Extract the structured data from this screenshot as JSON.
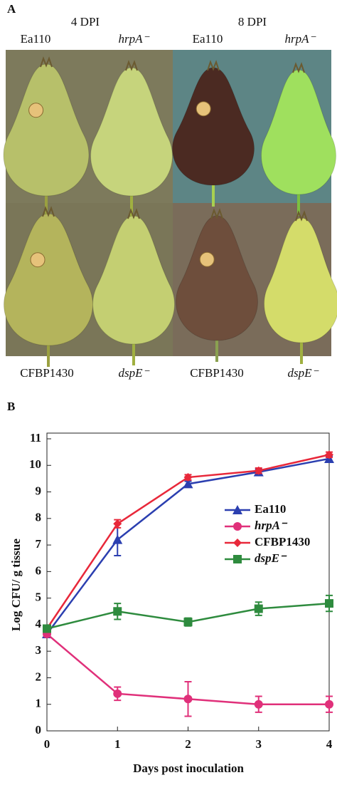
{
  "panel_a": {
    "label": "A",
    "headers": [
      "4 DPI",
      "8 DPI"
    ],
    "top_labels": [
      "Ea110",
      "hrpA⁻",
      "Ea110",
      "hrpA⁻"
    ],
    "bottom_labels": [
      "CFBP1430",
      "dspE⁻",
      "CFBP1430",
      "dspE⁻"
    ]
  },
  "chart_data": {
    "type": "line",
    "panel_label": "B",
    "x_label": "Days post inoculation",
    "y_label": "Log CFU/ g tissue",
    "x": [
      0,
      1,
      2,
      3,
      4
    ],
    "xlim": [
      0,
      4
    ],
    "xticks": [
      0,
      1,
      2,
      3,
      4
    ],
    "ylim": [
      0,
      11
    ],
    "yticks": [
      0,
      1,
      2,
      3,
      4,
      5,
      6,
      7,
      8,
      9,
      10,
      11
    ],
    "legend": "upper right",
    "series": [
      {
        "name": "Ea110",
        "color": "#2b3fb0",
        "marker": "triangle",
        "values": [
          3.65,
          7.2,
          9.3,
          9.75,
          10.25
        ],
        "errors": [
          0.1,
          0.6,
          0.1,
          0.1,
          0.1
        ]
      },
      {
        "name": "hrpA⁻",
        "color": "#e0307a",
        "marker": "circle",
        "values": [
          3.65,
          1.4,
          1.2,
          1.0,
          1.0
        ],
        "errors": [
          0.1,
          0.25,
          0.65,
          0.3,
          0.3
        ]
      },
      {
        "name": "CFBP1430",
        "color": "#e8283a",
        "marker": "diamond",
        "values": [
          3.85,
          7.8,
          9.55,
          9.8,
          10.4
        ],
        "errors": [
          0.1,
          0.15,
          0.1,
          0.1,
          0.1
        ]
      },
      {
        "name": "dspE⁻",
        "color": "#2e8b3e",
        "marker": "square",
        "values": [
          3.85,
          4.5,
          4.1,
          4.6,
          4.8
        ],
        "errors": [
          0.1,
          0.3,
          0.15,
          0.25,
          0.3
        ]
      }
    ]
  }
}
